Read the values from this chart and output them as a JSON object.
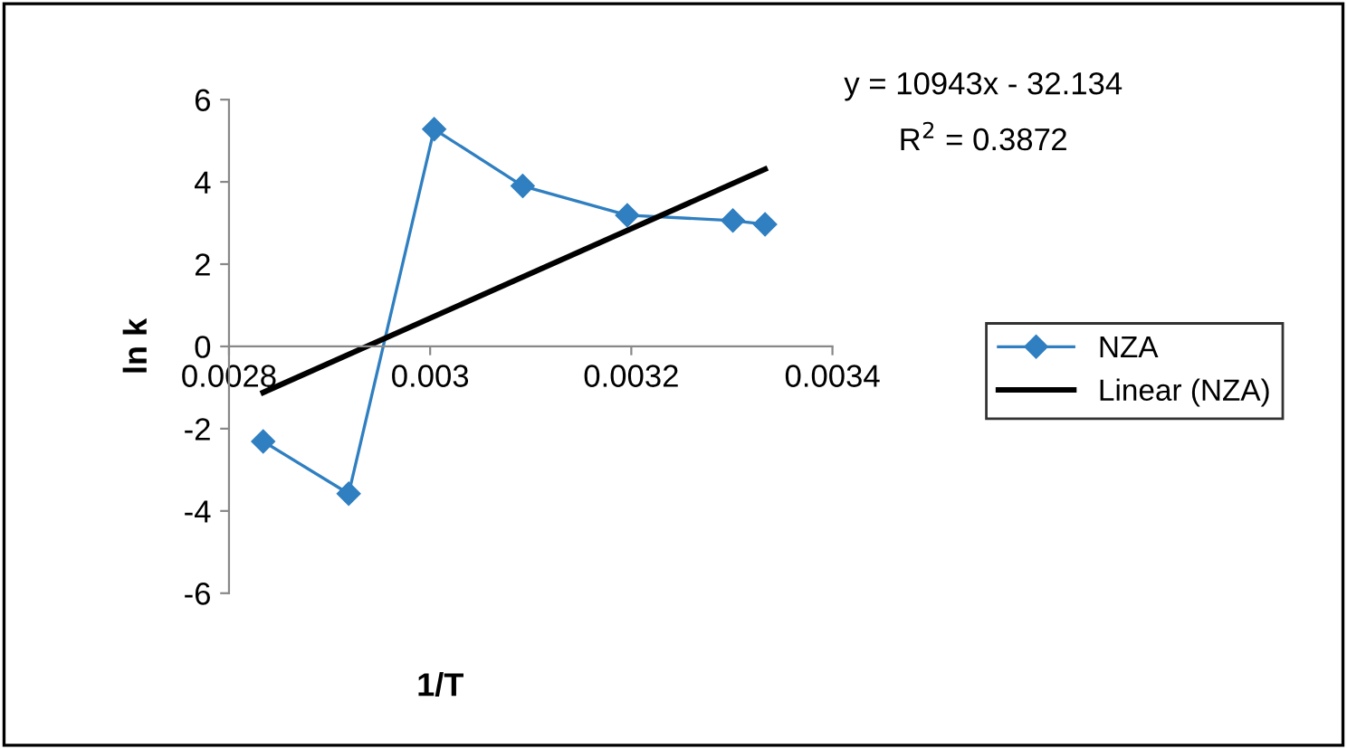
{
  "chart_data": {
    "type": "line",
    "xlabel": "1/T",
    "ylabel": "ln k",
    "x": [
      0.002834,
      0.002919,
      0.003004,
      0.003092,
      0.003196,
      0.003301,
      0.003333
    ],
    "series": [
      {
        "name": "NZA",
        "color": "#2f7fc1",
        "values": [
          -2.31,
          -3.58,
          5.28,
          3.9,
          3.19,
          3.06,
          2.97
        ],
        "marker": "diamond"
      },
      {
        "name": "Linear (NZA)",
        "color": "#000000",
        "type": "line",
        "x": [
          0.002834,
          0.003333
        ],
        "values": [
          -1.12,
          4.31
        ],
        "marker": "none"
      }
    ],
    "xlim": [
      0.0028,
      0.0034
    ],
    "xticks": [
      0.0028,
      0.003,
      0.0032,
      0.0034
    ],
    "ylim": [
      -6,
      6
    ],
    "yticks": [
      -6,
      -4,
      -2,
      0,
      2,
      4,
      6
    ],
    "annotations": [
      "y = 10943x - 32.134",
      "R$^{2}$ = 0.3872"
    ],
    "legend": "right",
    "grid": false
  }
}
